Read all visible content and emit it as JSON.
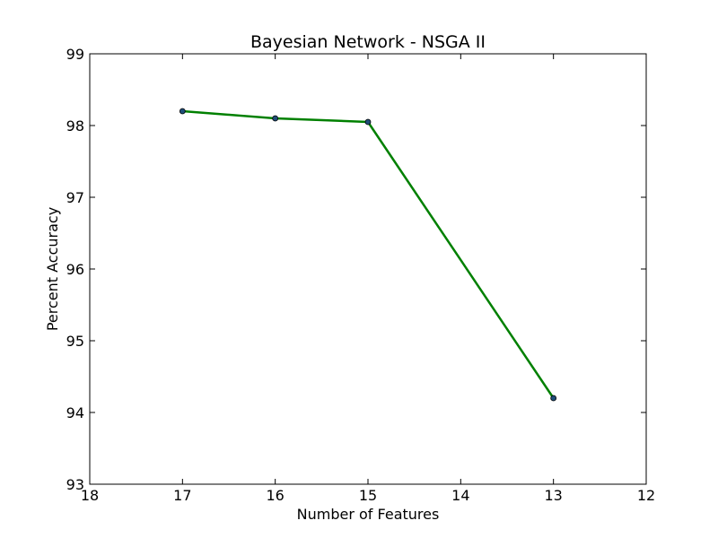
{
  "chart_data": {
    "type": "line",
    "title": "Bayesian Network - NSGA II",
    "xlabel": "Number of Features",
    "ylabel": "Percent Accuracy",
    "xlim": [
      18,
      12
    ],
    "ylim": [
      93,
      99
    ],
    "x_reversed": true,
    "xticks": [
      18,
      17,
      16,
      15,
      14,
      13,
      12
    ],
    "yticks": [
      93,
      94,
      95,
      96,
      97,
      98,
      99
    ],
    "grid": false,
    "series": [
      {
        "color": "#008000",
        "marker_color": "#1f4e79",
        "points": [
          {
            "x": 17,
            "y": 98.2
          },
          {
            "x": 16,
            "y": 98.1
          },
          {
            "x": 15,
            "y": 98.05
          },
          {
            "x": 13,
            "y": 94.2
          }
        ]
      }
    ]
  }
}
